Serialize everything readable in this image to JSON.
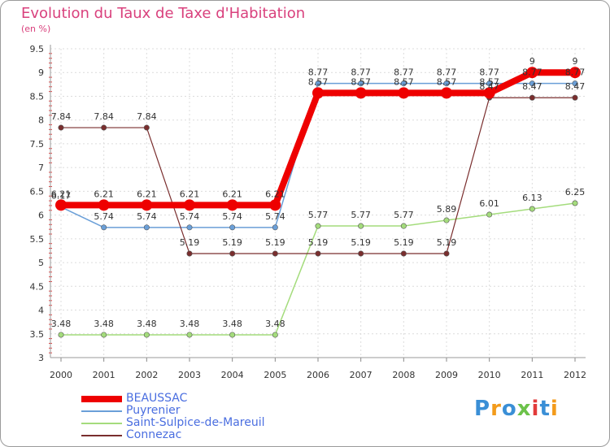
{
  "chart_data": {
    "type": "line",
    "title": "Evolution du Taux de Taxe d'Habitation",
    "ylabel": "(en %)",
    "ylim": [
      3,
      9.5
    ],
    "yticks": [
      "3",
      "3.5",
      "4",
      "4.5",
      "5",
      "5.5",
      "6",
      "6.5",
      "7",
      "7.5",
      "8",
      "8.5",
      "9",
      "9.5"
    ],
    "grid": true,
    "legend_position": "bottom-left",
    "categories": [
      "2000",
      "2001",
      "2002",
      "2003",
      "2004",
      "2005",
      "2006",
      "2007",
      "2008",
      "2009",
      "2010",
      "2011",
      "2012"
    ],
    "series": [
      {
        "name": "BEAUSSAC",
        "color": "#ee0000",
        "values": [
          6.21,
          6.21,
          6.21,
          6.21,
          6.21,
          6.21,
          8.57,
          8.57,
          8.57,
          8.57,
          8.57,
          9,
          9
        ],
        "labels": [
          "6.21",
          "6.21",
          "6.21",
          "6.21",
          "6.21",
          "6.21",
          "8.57",
          "8.57",
          "8.57",
          "8.57",
          "8.57",
          "9",
          "9"
        ]
      },
      {
        "name": "Puyrenier",
        "color": "#6a9fd8",
        "values": [
          6.17,
          5.74,
          5.74,
          5.74,
          5.74,
          5.74,
          8.77,
          8.77,
          8.77,
          8.77,
          8.77,
          8.77,
          8.77
        ],
        "labels": [
          "6.17",
          "5.74",
          "5.74",
          "5.74",
          "5.74",
          "5.74",
          "8.77",
          "8.77",
          "8.77",
          "8.77",
          "8.77",
          "8.77",
          "8.77"
        ]
      },
      {
        "name": "Saint-Sulpice-de-Mareuil",
        "color": "#a4dc7c",
        "values": [
          3.48,
          3.48,
          3.48,
          3.48,
          3.48,
          3.48,
          5.77,
          5.77,
          5.77,
          5.89,
          6.01,
          6.13,
          6.25
        ],
        "labels": [
          "3.48",
          "3.48",
          "3.48",
          "3.48",
          "3.48",
          "3.48",
          "5.77",
          "5.77",
          "5.77",
          "5.89",
          "6.01",
          "6.13",
          "6.25"
        ]
      },
      {
        "name": "Connezac",
        "color": "#7a2e2e",
        "values": [
          7.84,
          7.84,
          7.84,
          5.19,
          5.19,
          5.19,
          5.19,
          5.19,
          5.19,
          5.19,
          8.47,
          8.47,
          8.47
        ],
        "labels": [
          "7.84",
          "7.84",
          "7.84",
          "5.19",
          "5.19",
          "5.19",
          "5.19",
          "5.19",
          "5.19",
          "5.19",
          "8.47",
          "8.47",
          "8.47"
        ]
      }
    ]
  },
  "logo": {
    "text": "Proxiti",
    "colors": [
      "#3a8fd6",
      "#f39b1b",
      "#3a8fd6",
      "#6cc24a",
      "#e23a3a",
      "#3a8fd6",
      "#f39b1b"
    ]
  }
}
